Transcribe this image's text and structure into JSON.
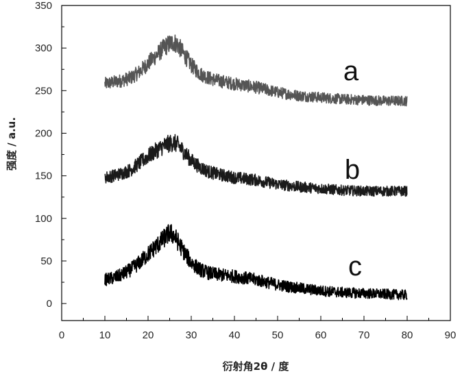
{
  "chart_data": {
    "type": "line",
    "xlabel": "衍射角2θ / 度",
    "ylabel": "强度 / a.u.",
    "xlim": [
      0,
      90
    ],
    "ylim": [
      -20,
      350
    ],
    "x_ticks": [
      "0",
      "10",
      "20",
      "30",
      "40",
      "50",
      "60",
      "70",
      "80",
      "90"
    ],
    "y_ticks": [
      "0",
      "50",
      "100",
      "150",
      "200",
      "250",
      "300",
      "350"
    ],
    "grid": false,
    "legend": "none",
    "series": [
      {
        "name": "a",
        "color": "#555555",
        "x": [
          10,
          12,
          14,
          16,
          18,
          20,
          22,
          24,
          25,
          26,
          27,
          28,
          30,
          32,
          34,
          36,
          40,
          45,
          50,
          55,
          60,
          65,
          70,
          75,
          80
        ],
        "values": [
          258,
          260,
          262,
          265,
          272,
          282,
          292,
          302,
          305,
          307,
          303,
          295,
          280,
          270,
          265,
          262,
          258,
          254,
          248,
          244,
          242,
          240,
          239,
          238,
          238
        ]
      },
      {
        "name": "b",
        "color": "#1a1a1a",
        "x": [
          10,
          12,
          14,
          16,
          18,
          20,
          22,
          24,
          25,
          26,
          27,
          28,
          30,
          32,
          34,
          36,
          40,
          45,
          50,
          55,
          60,
          65,
          70,
          75,
          80
        ],
        "values": [
          148,
          150,
          153,
          157,
          165,
          173,
          180,
          186,
          188,
          189,
          186,
          180,
          168,
          160,
          155,
          152,
          148,
          145,
          140,
          137,
          135,
          133,
          132,
          132,
          132
        ]
      },
      {
        "name": "c",
        "color": "#000000",
        "x": [
          10,
          12,
          14,
          16,
          18,
          20,
          22,
          24,
          25,
          26,
          27,
          28,
          30,
          32,
          34,
          36,
          40,
          45,
          50,
          55,
          60,
          65,
          70,
          75,
          80
        ],
        "values": [
          28,
          30,
          34,
          40,
          48,
          58,
          68,
          78,
          83,
          80,
          72,
          63,
          48,
          40,
          36,
          34,
          32,
          28,
          22,
          18,
          15,
          13,
          12,
          11,
          10
        ]
      }
    ]
  }
}
